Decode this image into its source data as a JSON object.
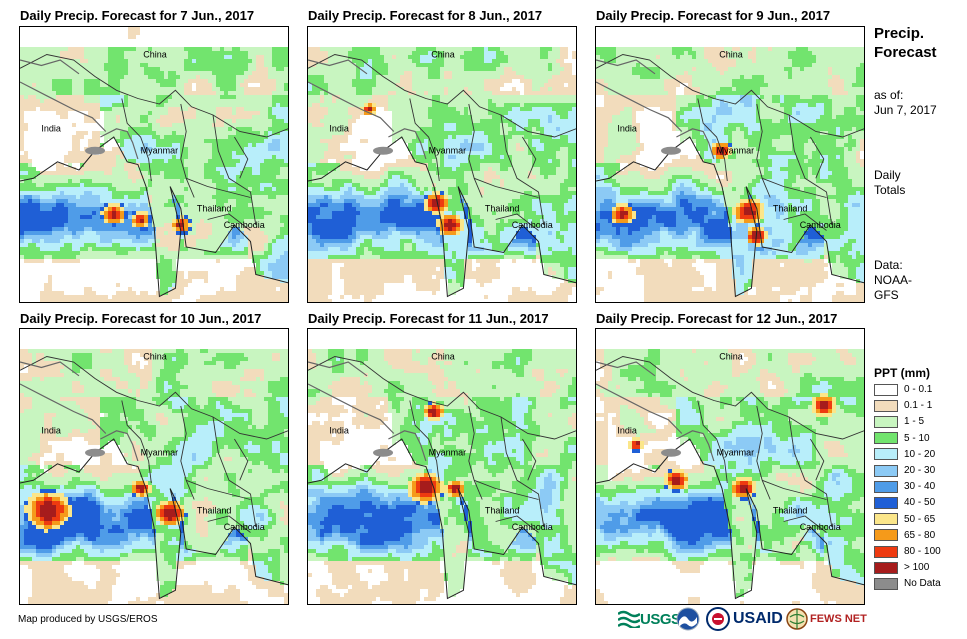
{
  "panels": [
    {
      "title": "Daily Precip. Forecast for 7 Jun., 2017",
      "labels": {
        "china": "China",
        "india": "India",
        "myanmar": "Myanmar",
        "thailand": "Thailand",
        "cambodia": "Cambodia"
      }
    },
    {
      "title": "Daily Precip. Forecast for 8 Jun., 2017",
      "labels": {
        "china": "China",
        "india": "India",
        "myanmar": "Myanmar",
        "thailand": "Thailand",
        "cambodia": "Cambodia"
      }
    },
    {
      "title": "Daily Precip. Forecast for 9 Jun., 2017",
      "labels": {
        "china": "China",
        "india": "India",
        "myanmar": "Myanmar",
        "thailand": "Thailand",
        "cambodia": "Cambodia"
      }
    },
    {
      "title": "Daily Precip. Forecast for 10 Jun., 2017",
      "labels": {
        "china": "China",
        "india": "India",
        "myanmar": "Myanmar",
        "thailand": "Thailand",
        "cambodia": "Cambodia"
      }
    },
    {
      "title": "Daily Precip. Forecast for 11 Jun., 2017",
      "labels": {
        "china": "China",
        "india": "India",
        "myanmar": "Myanmar",
        "thailand": "Thailand",
        "cambodia": "Cambodia"
      }
    },
    {
      "title": "Daily Precip. Forecast for 12 Jun., 2017",
      "labels": {
        "china": "China",
        "india": "India",
        "myanmar": "Myanmar",
        "thailand": "Thailand",
        "cambodia": "Cambodia"
      }
    }
  ],
  "sidebar": {
    "title_line1": "Precip.",
    "title_line2": "Forecast",
    "asof_line1": "as of:",
    "asof_line2": "Jun 7, 2017",
    "totals_line1": "Daily",
    "totals_line2": "Totals",
    "data_line1": "Data:",
    "data_line2": "NOAA-",
    "data_line3": "GFS"
  },
  "legend": {
    "title": "PPT (mm)",
    "items": [
      {
        "label": "0 - 0.1",
        "color": "#ffffff"
      },
      {
        "label": "0.1 - 1",
        "color": "#f2dcbc"
      },
      {
        "label": "1 - 5",
        "color": "#c8f5c0"
      },
      {
        "label": "5 - 10",
        "color": "#72e46e"
      },
      {
        "label": "10 - 20",
        "color": "#b8eefa"
      },
      {
        "label": "20 - 30",
        "color": "#8ccaf5"
      },
      {
        "label": "30 - 40",
        "color": "#4f9ce8"
      },
      {
        "label": "40 - 50",
        "color": "#1f5fd6"
      },
      {
        "label": "50 - 65",
        "color": "#fbe68a"
      },
      {
        "label": "65 - 80",
        "color": "#f59a1a"
      },
      {
        "label": "80 - 100",
        "color": "#ee3a10"
      },
      {
        "label": "> 100",
        "color": "#a61c1c"
      },
      {
        "label": "No Data",
        "color": "#8c8c8c"
      }
    ]
  },
  "credit": "Map produced by USGS/EROS",
  "logos": {
    "usgs": "USGS",
    "usaid": "USAID",
    "fews": "FEWS NET"
  }
}
